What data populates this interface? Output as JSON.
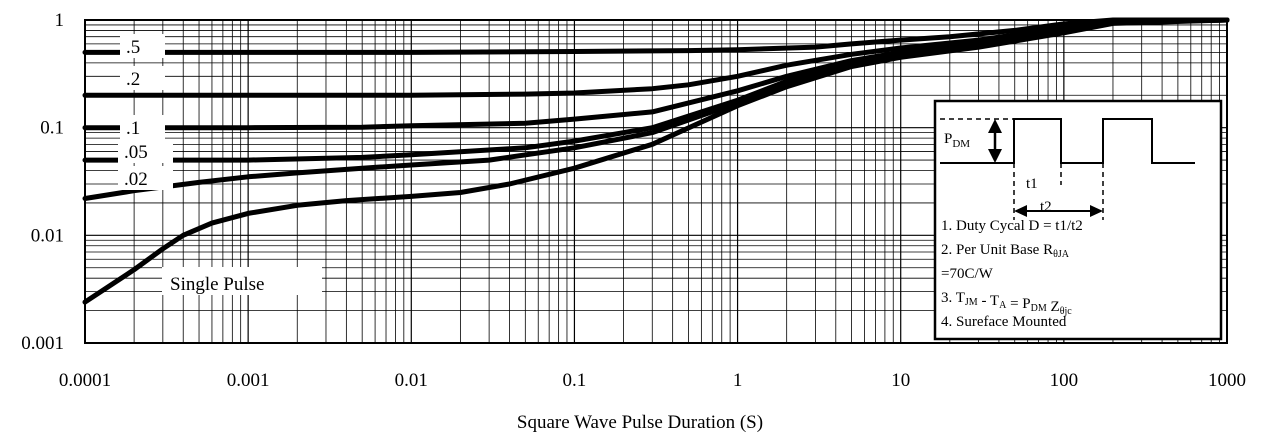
{
  "chart_data": {
    "type": "line",
    "title": "",
    "xlabel": "Square Wave Pulse Duration (S)",
    "ylabel": "",
    "xscale": "log",
    "yscale": "log",
    "xlim": [
      0.0001,
      1000
    ],
    "ylim": [
      0.001,
      1
    ],
    "x_tick_labels": [
      "0.0001",
      "0.001",
      "0.01",
      "0.1",
      "1",
      "10",
      "100",
      "1000"
    ],
    "y_tick_labels": [
      "0.001",
      "0.01",
      "0.1",
      "1"
    ],
    "grid": "major and minor",
    "series": [
      {
        "name": ".5",
        "points": [
          [
            0.0001,
            0.5
          ],
          [
            0.001,
            0.5
          ],
          [
            0.01,
            0.5
          ],
          [
            0.1,
            0.51
          ],
          [
            0.5,
            0.52
          ],
          [
            1,
            0.53
          ],
          [
            3,
            0.56
          ],
          [
            5,
            0.6
          ],
          [
            10,
            0.65
          ],
          [
            20,
            0.7
          ],
          [
            50,
            0.8
          ],
          [
            100,
            0.92
          ],
          [
            200,
            1.0
          ],
          [
            1000,
            1.0
          ]
        ]
      },
      {
        "name": ".2",
        "points": [
          [
            0.0001,
            0.2
          ],
          [
            0.001,
            0.2
          ],
          [
            0.01,
            0.2
          ],
          [
            0.05,
            0.205
          ],
          [
            0.1,
            0.21
          ],
          [
            0.3,
            0.23
          ],
          [
            0.5,
            0.25
          ],
          [
            1,
            0.3
          ],
          [
            2,
            0.38
          ],
          [
            5,
            0.48
          ],
          [
            10,
            0.55
          ],
          [
            30,
            0.65
          ],
          [
            100,
            0.85
          ],
          [
            200,
            0.98
          ],
          [
            1000,
            1.0
          ]
        ]
      },
      {
        "name": ".1",
        "points": [
          [
            0.0001,
            0.1
          ],
          [
            0.001,
            0.1
          ],
          [
            0.005,
            0.101
          ],
          [
            0.01,
            0.104
          ],
          [
            0.05,
            0.11
          ],
          [
            0.1,
            0.12
          ],
          [
            0.3,
            0.14
          ],
          [
            1,
            0.22
          ],
          [
            2,
            0.3
          ],
          [
            5,
            0.42
          ],
          [
            10,
            0.5
          ],
          [
            30,
            0.6
          ],
          [
            100,
            0.82
          ],
          [
            200,
            0.97
          ],
          [
            1000,
            1.0
          ]
        ]
      },
      {
        "name": ".05",
        "points": [
          [
            0.0001,
            0.05
          ],
          [
            0.001,
            0.05
          ],
          [
            0.005,
            0.053
          ],
          [
            0.01,
            0.056
          ],
          [
            0.05,
            0.065
          ],
          [
            0.1,
            0.075
          ],
          [
            0.3,
            0.1
          ],
          [
            1,
            0.18
          ],
          [
            2,
            0.27
          ],
          [
            5,
            0.4
          ],
          [
            10,
            0.48
          ],
          [
            30,
            0.58
          ],
          [
            100,
            0.8
          ],
          [
            200,
            0.96
          ],
          [
            1000,
            1.0
          ]
        ]
      },
      {
        "name": ".02",
        "points": [
          [
            0.0001,
            0.022
          ],
          [
            0.0002,
            0.026
          ],
          [
            0.0005,
            0.031
          ],
          [
            0.001,
            0.035
          ],
          [
            0.002,
            0.038
          ],
          [
            0.005,
            0.042
          ],
          [
            0.01,
            0.045
          ],
          [
            0.03,
            0.05
          ],
          [
            0.1,
            0.065
          ],
          [
            0.3,
            0.09
          ],
          [
            1,
            0.17
          ],
          [
            2,
            0.25
          ],
          [
            5,
            0.38
          ],
          [
            10,
            0.46
          ],
          [
            30,
            0.57
          ],
          [
            100,
            0.78
          ],
          [
            200,
            0.95
          ],
          [
            1000,
            1.0
          ]
        ]
      },
      {
        "name": "Single Pulse",
        "points": [
          [
            0.0001,
            0.0024
          ],
          [
            0.0002,
            0.0048
          ],
          [
            0.0003,
            0.0075
          ],
          [
            0.0004,
            0.01
          ],
          [
            0.0006,
            0.013
          ],
          [
            0.001,
            0.016
          ],
          [
            0.002,
            0.019
          ],
          [
            0.004,
            0.021
          ],
          [
            0.01,
            0.023
          ],
          [
            0.02,
            0.025
          ],
          [
            0.04,
            0.03
          ],
          [
            0.1,
            0.042
          ],
          [
            0.3,
            0.07
          ],
          [
            1,
            0.16
          ],
          [
            2,
            0.24
          ],
          [
            5,
            0.37
          ],
          [
            10,
            0.45
          ],
          [
            30,
            0.56
          ],
          [
            100,
            0.76
          ],
          [
            200,
            0.93
          ],
          [
            1000,
            1.0
          ]
        ]
      }
    ]
  },
  "inset": {
    "pdm_label": "P",
    "pdm_sub": "DM",
    "t1_label": "t1",
    "t2_label": "t2",
    "notes": [
      {
        "pre": "1. Duty Cycal D = t1/t2",
        "sub": "",
        "post": ""
      },
      {
        "pre": "2. Per Unit Base R",
        "sub": "θJA",
        "post": ""
      },
      {
        "pre": "=70C/W",
        "sub": "",
        "post": ""
      },
      {
        "pre": "3. T",
        "sub": "JM",
        "post": " - T",
        "sub2": "A",
        "post2": " = P",
        "sub3": "DM",
        "post3": " Z",
        "sub4": "θjc"
      },
      {
        "pre": "4. Sureface Mounted",
        "sub": "",
        "post": ""
      }
    ]
  }
}
